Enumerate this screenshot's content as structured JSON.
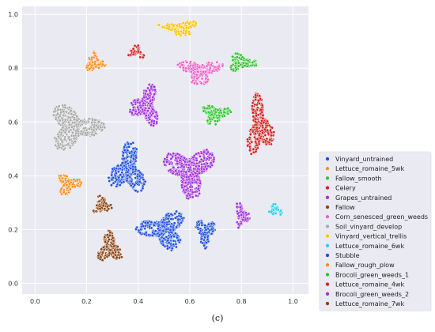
{
  "chart_data": {
    "type": "scatter",
    "title": "",
    "xlabel": "",
    "ylabel": "",
    "xlim": [
      -0.05,
      1.06
    ],
    "ylim": [
      -0.04,
      1.03
    ],
    "xticks": [
      "0.0",
      "0.2",
      "0.4",
      "0.6",
      "0.8",
      "1.0"
    ],
    "yticks": [
      "0.0",
      "0.2",
      "0.4",
      "0.6",
      "0.8",
      "1.0"
    ],
    "grid": true,
    "background": "#eaeaf2",
    "legend_position": "right",
    "series": [
      {
        "name": "Vinyard_untrained",
        "color": "#1f4fe0",
        "clusters": [
          [
            0.5,
            0.2,
            0.1,
            0.075
          ],
          [
            0.36,
            0.42,
            0.075,
            0.1
          ],
          [
            0.66,
            0.19,
            0.04,
            0.06
          ]
        ]
      },
      {
        "name": "Lettuce_romaine_5wk",
        "color": "#ff8c1a",
        "clusters": [
          [
            0.13,
            0.37,
            0.05,
            0.04
          ],
          [
            0.23,
            0.82,
            0.04,
            0.04
          ]
        ]
      },
      {
        "name": "Fallow_smooth",
        "color": "#2ec42e",
        "clusters": [
          [
            0.8,
            0.82,
            0.06,
            0.035
          ],
          [
            0.7,
            0.63,
            0.06,
            0.04
          ]
        ]
      },
      {
        "name": "Celery",
        "color": "#d42020",
        "clusters": [
          [
            0.87,
            0.58,
            0.055,
            0.12
          ],
          [
            0.39,
            0.86,
            0.04,
            0.025
          ]
        ]
      },
      {
        "name": "Grapes_untrained",
        "color": "#a030e0",
        "clusters": [
          [
            0.6,
            0.42,
            0.1,
            0.1
          ],
          [
            0.43,
            0.66,
            0.06,
            0.08
          ],
          [
            0.8,
            0.25,
            0.03,
            0.05
          ]
        ]
      },
      {
        "name": "Fallow",
        "color": "#8b4513",
        "clusters": [
          [
            0.26,
            0.29,
            0.04,
            0.035
          ],
          [
            0.29,
            0.13,
            0.05,
            0.06
          ]
        ]
      },
      {
        "name": "Corn_senesced_green_weeds",
        "color": "#f060c8",
        "clusters": [
          [
            0.64,
            0.79,
            0.09,
            0.05
          ]
        ]
      },
      {
        "name": "Soil_vinyard_develop",
        "color": "#a8a8a8",
        "clusters": [
          [
            0.15,
            0.58,
            0.11,
            0.085
          ]
        ]
      },
      {
        "name": "Vinyard_vertical_trellis",
        "color": "#ffc000",
        "clusters": [
          [
            0.56,
            0.95,
            0.08,
            0.03
          ]
        ]
      },
      {
        "name": "Lettuce_romaine_6wk",
        "color": "#20d0f0",
        "clusters": [
          [
            0.93,
            0.27,
            0.03,
            0.025
          ]
        ]
      },
      {
        "name": "Stubble",
        "color": "#1f4fe0",
        "clusters": []
      },
      {
        "name": "Fallow_rough_plow",
        "color": "#ff8c1a",
        "clusters": []
      },
      {
        "name": "Brocoli_green_weeds_1",
        "color": "#2ec42e",
        "clusters": []
      },
      {
        "name": "Lettuce_romaine_4wk",
        "color": "#d42020",
        "clusters": []
      },
      {
        "name": "Brocoli_green_weeds_2",
        "color": "#a030e0",
        "clusters": []
      },
      {
        "name": "Lettuce_romaine_7wk",
        "color": "#8b4513",
        "clusters": []
      }
    ]
  },
  "caption": "(c)"
}
